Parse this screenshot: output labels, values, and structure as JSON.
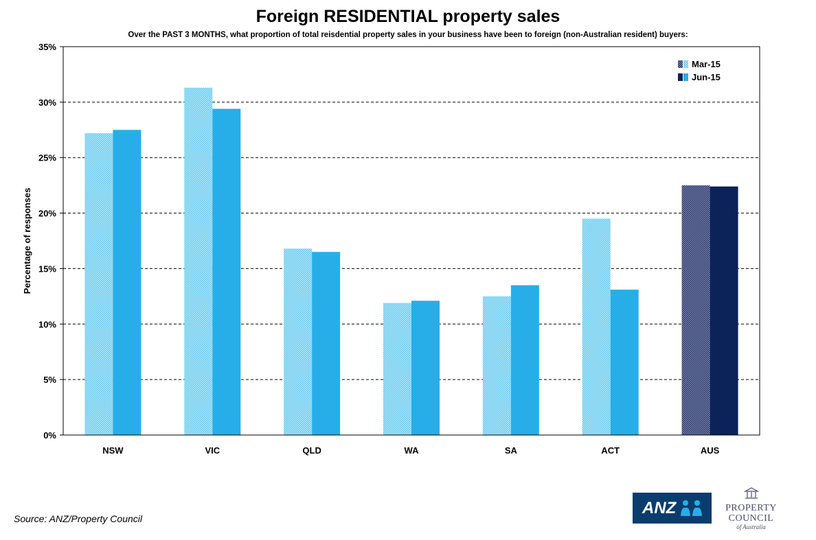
{
  "chart_data": {
    "type": "bar",
    "title": "Foreign RESIDENTIAL property sales",
    "subtitle": "Over the PAST 3 MONTHS, what proportion of total reisdential property sales in your business have been to foreign (non-Australian resident) buyers:",
    "ylabel": "Percentage of responses",
    "xlabel": "",
    "ylim": [
      0,
      35
    ],
    "yticks": [
      "0%",
      "5%",
      "10%",
      "15%",
      "20%",
      "25%",
      "30%",
      "35%"
    ],
    "ytick_values": [
      0,
      5,
      10,
      15,
      20,
      25,
      30,
      35
    ],
    "categories": [
      "NSW",
      "VIC",
      "QLD",
      "WA",
      "SA",
      "ACT",
      "AUS"
    ],
    "series": [
      {
        "name": "Mar-15",
        "values": [
          27.2,
          31.3,
          16.8,
          11.9,
          12.5,
          19.5,
          22.5
        ]
      },
      {
        "name": "Jun-15",
        "values": [
          27.5,
          29.4,
          16.5,
          12.1,
          13.5,
          13.1,
          22.4
        ]
      }
    ],
    "grid": "horizontal dashed",
    "legend_position": "top-right",
    "colors": {
      "mar_state": "#7dd3f0",
      "jun_state": "#27aee8",
      "mar_aus": "#3d4a7a",
      "jun_aus": "#0b2358"
    }
  },
  "footer": {
    "source": "Source: ANZ/Property Council"
  },
  "logos": {
    "anz": "ANZ",
    "property_council_line1": "PROPERTY",
    "property_council_line2": "COUNCIL",
    "property_council_line3": "of Australia"
  }
}
